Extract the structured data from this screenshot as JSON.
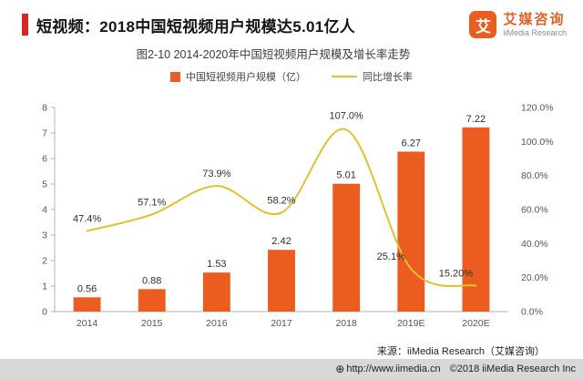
{
  "header": {
    "title": "短视频：2018中国短视频用户规模达5.01亿人",
    "accent_color": "#D9251D",
    "logo": {
      "glyph": "艾",
      "name": "艾媒咨询",
      "subtitle": "iiMedia Research",
      "color": "#EB5C20"
    }
  },
  "chart": {
    "title": "图2-10 2014-2020年中国短视频用户规模及增长率走势",
    "source": "来源：iiMedia Research（艾媒咨询）"
  },
  "chart_data": {
    "type": "bar+line",
    "categories": [
      "2014",
      "2015",
      "2016",
      "2017",
      "2018",
      "2019E",
      "2020E"
    ],
    "series": [
      {
        "name": "中国短视频用户规模（亿）",
        "type": "bar",
        "color": "#EB5C20",
        "values": [
          0.56,
          0.88,
          1.53,
          2.42,
          5.01,
          6.27,
          7.22
        ],
        "labels": [
          "0.56",
          "0.88",
          "1.53",
          "2.42",
          "5.01",
          "6.27",
          "7.22"
        ]
      },
      {
        "name": "同比增长率",
        "type": "line",
        "color": "#E4C02C",
        "values": [
          47.4,
          57.1,
          73.9,
          58.2,
          107.0,
          25.1,
          15.2
        ],
        "labels": [
          "47.4%",
          "57.1%",
          "73.9%",
          "58.2%",
          "107.0%",
          "25.1%",
          "15.20%"
        ]
      }
    ],
    "left_axis": {
      "min": 0,
      "max": 8,
      "ticks": [
        0,
        1,
        2,
        3,
        4,
        5,
        6,
        7,
        8
      ]
    },
    "right_axis": {
      "min": 0,
      "max": 120,
      "ticks": [
        "0.0%",
        "20.0%",
        "40.0%",
        "60.0%",
        "80.0%",
        "100.0%",
        "120.0%"
      ]
    },
    "legend_position": "top",
    "grid": false
  },
  "footer": {
    "globe_icon": "⊕",
    "url": "http://www.iimedia.cn",
    "copyright": "©2018  iiMedia Research Inc"
  }
}
